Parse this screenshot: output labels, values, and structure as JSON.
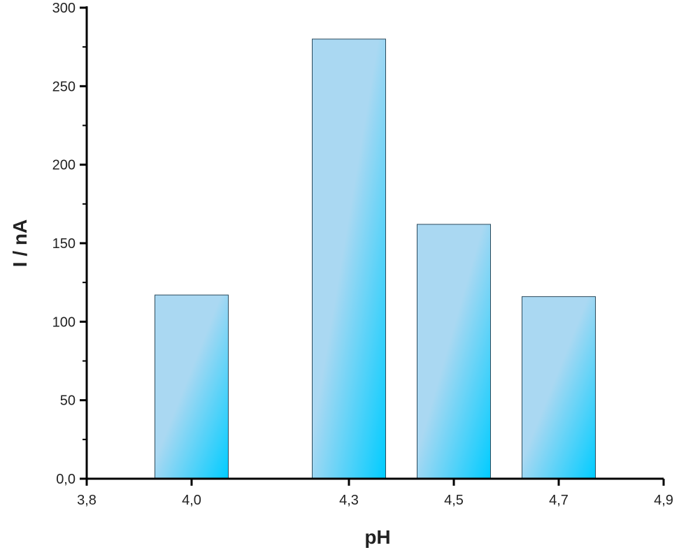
{
  "chart_data": {
    "type": "bar",
    "title": "",
    "xlabel": "pH",
    "ylabel": "I / nA",
    "x": [
      4.0,
      4.3,
      4.5,
      4.7
    ],
    "values": [
      117,
      280,
      162,
      116
    ],
    "xlim": [
      3.8,
      4.9
    ],
    "ylim": [
      0,
      300
    ],
    "x_ticks": [
      {
        "value": 3.8,
        "label": "3,8"
      },
      {
        "value": 4.0,
        "label": "4,0"
      },
      {
        "value": 4.3,
        "label": "4,3"
      },
      {
        "value": 4.5,
        "label": "4,5"
      },
      {
        "value": 4.7,
        "label": "4,7"
      },
      {
        "value": 4.9,
        "label": "4,9"
      }
    ],
    "y_ticks": [
      {
        "value": 0,
        "label": "0,0"
      },
      {
        "value": 50,
        "label": "50"
      },
      {
        "value": 100,
        "label": "100"
      },
      {
        "value": 150,
        "label": "150"
      },
      {
        "value": 200,
        "label": "200"
      },
      {
        "value": 250,
        "label": "250"
      },
      {
        "value": 300,
        "label": "300"
      }
    ],
    "bar_width": 0.14,
    "grid": false,
    "legend": "none",
    "colors": {
      "bar_light": "#aad8f2",
      "bar_dark": "#00ccff",
      "bar_edge": "#2b4a5c",
      "axis": "#000000"
    }
  }
}
